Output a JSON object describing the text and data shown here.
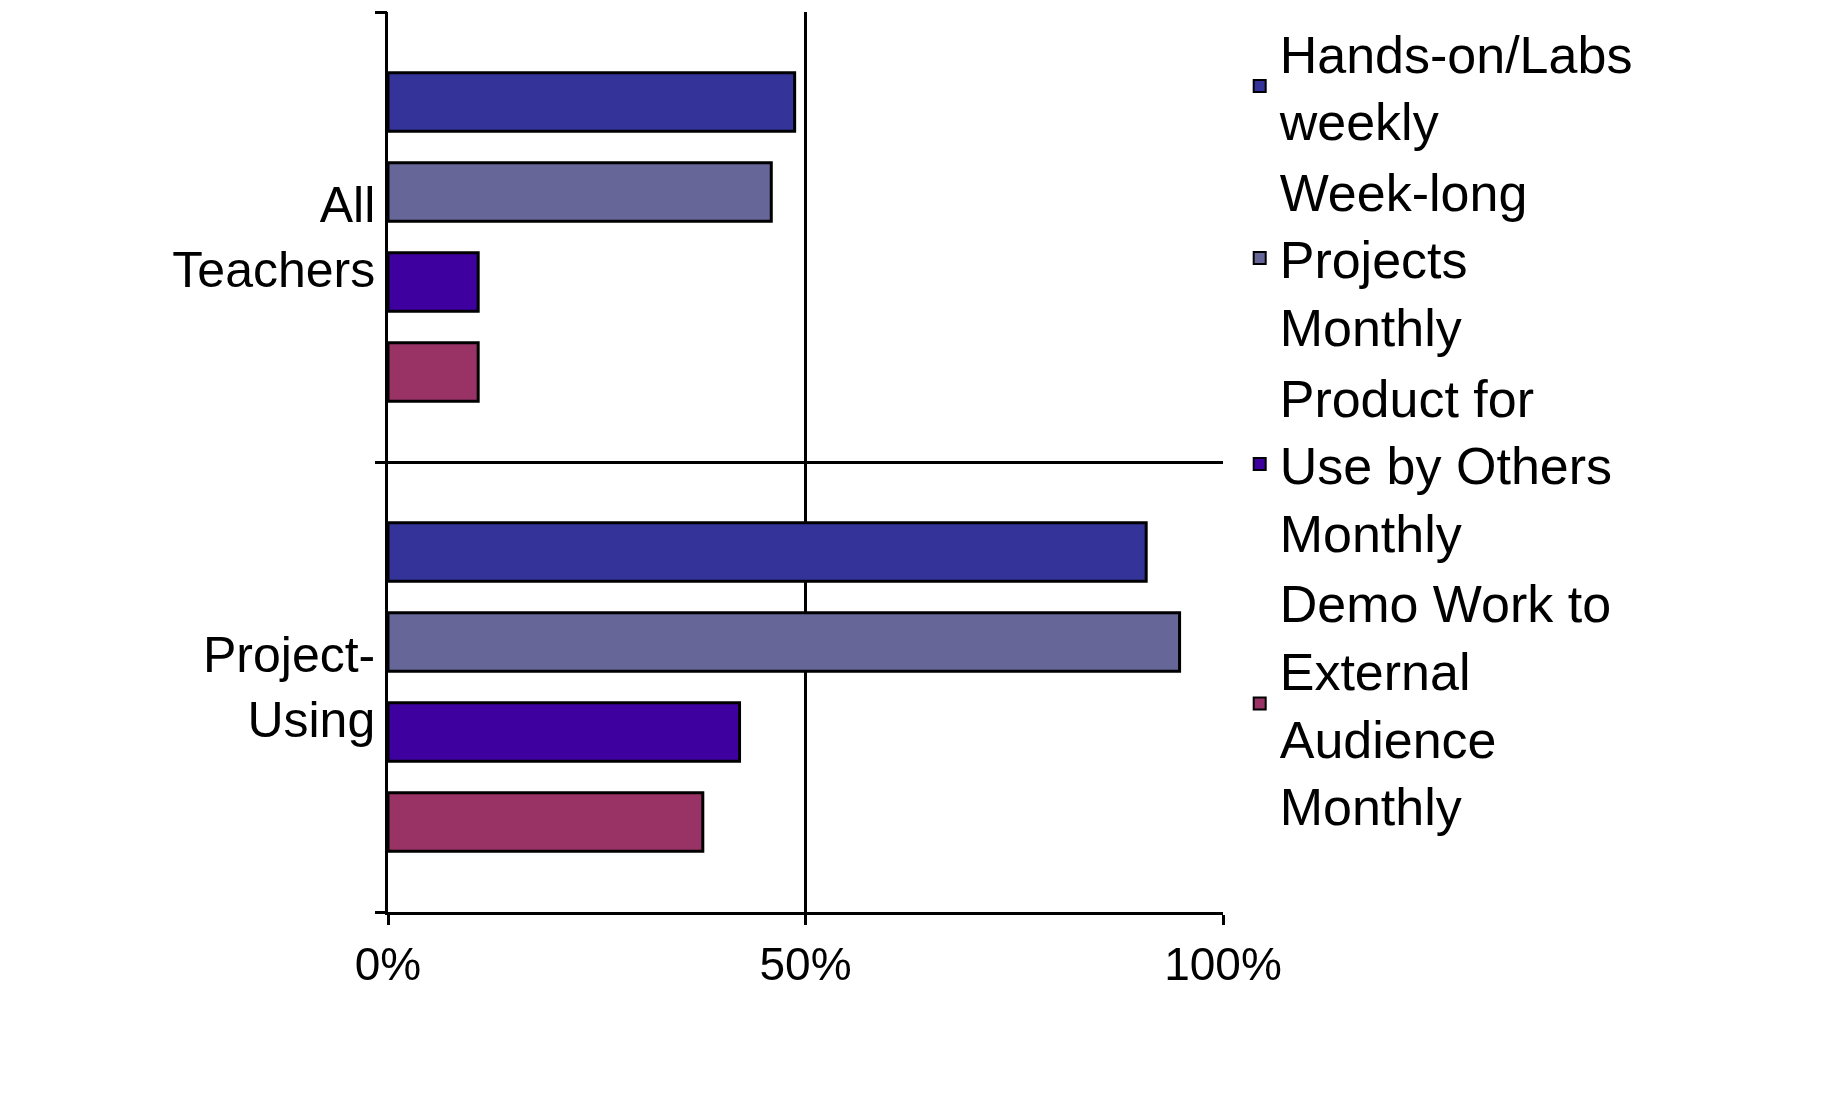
{
  "chart_data": {
    "type": "bar",
    "orientation": "horizontal",
    "categories": [
      "All Teachers",
      "Project-Using"
    ],
    "series": [
      {
        "name": "Hands-on/Labs weekly",
        "color": "#333399",
        "values": [
          48.7,
          90.8
        ]
      },
      {
        "name": "Week-long Projects Monthly",
        "color": "#666699",
        "values": [
          45.9,
          94.8
        ]
      },
      {
        "name": "Product for Use by Others Monthly",
        "color": "#3f00a0",
        "values": [
          10.8,
          42.1
        ]
      },
      {
        "name": "Demo Work to External Audience Monthly",
        "color": "#993366",
        "values": [
          10.8,
          37.7
        ]
      }
    ],
    "xlim": [
      0,
      100
    ],
    "xticks": [
      {
        "value": 0,
        "label": "0%"
      },
      {
        "value": 50,
        "label": "50%"
      },
      {
        "value": 100,
        "label": "100%"
      }
    ],
    "grid": true,
    "legend": "right"
  }
}
